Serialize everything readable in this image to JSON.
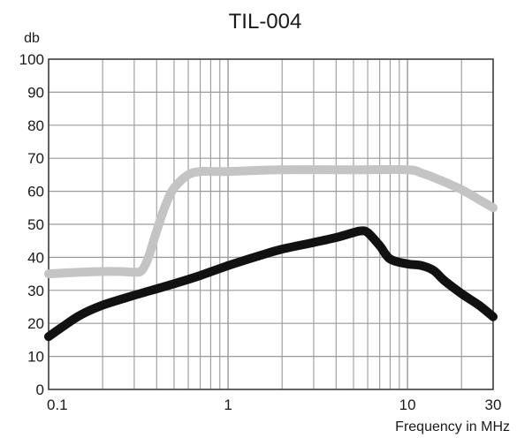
{
  "chart_data": {
    "type": "line",
    "title": "TIL-004",
    "ylabel": "db",
    "xlabel": "Frequency in MHz",
    "x_scale": "log",
    "xlim": [
      0.1,
      30
    ],
    "ylim": [
      0,
      100
    ],
    "grid": true,
    "y_ticks": [
      "0",
      "10",
      "20",
      "30",
      "40",
      "50",
      "60",
      "70",
      "80",
      "90",
      "100"
    ],
    "x_ticks": [
      {
        "value": 0.1,
        "label": "0.1"
      },
      {
        "value": 1,
        "label": "1"
      },
      {
        "value": 10,
        "label": "10"
      },
      {
        "value": 30,
        "label": "30"
      }
    ],
    "series": [
      {
        "color": "#c4c4c4",
        "x": [
          0.1,
          0.15,
          0.2,
          0.25,
          0.3,
          0.33,
          0.36,
          0.4,
          0.45,
          0.5,
          0.6,
          0.7,
          0.8,
          1,
          2,
          5,
          10,
          12,
          15,
          20,
          25,
          30
        ],
        "y": [
          35,
          35.5,
          35.7,
          35.7,
          35.5,
          36,
          40,
          48,
          56,
          61,
          65,
          66,
          66,
          66,
          66.5,
          66.5,
          66.5,
          65.5,
          63.5,
          60.5,
          57.5,
          55
        ]
      },
      {
        "color": "#111111",
        "x": [
          0.1,
          0.12,
          0.15,
          0.2,
          0.3,
          0.5,
          0.7,
          1,
          1.5,
          2,
          3,
          4,
          5,
          5.5,
          6,
          7,
          8,
          10,
          12,
          14,
          16,
          20,
          25,
          30
        ],
        "y": [
          16,
          19,
          22.5,
          25.5,
          28.5,
          32,
          34.5,
          37.5,
          40.5,
          42.5,
          44.5,
          46,
          47.5,
          48,
          47.5,
          43.5,
          39.5,
          38,
          37.5,
          36,
          33,
          29,
          25.5,
          22
        ]
      }
    ]
  }
}
